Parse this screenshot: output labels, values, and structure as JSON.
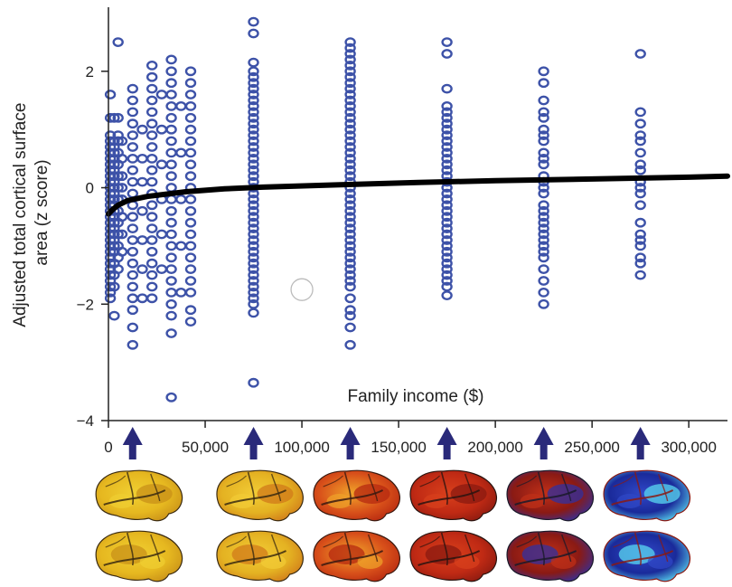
{
  "chart_data": {
    "type": "scatter",
    "xlabel": "Family income ($)",
    "ylabel": "Adjusted total cortical surface area (z score)",
    "ylabel_lines": [
      "Adjusted total cortical surface",
      "area (z score)"
    ],
    "xlim": [
      0,
      320000
    ],
    "ylim": [
      -4,
      3.1
    ],
    "x_ticks": [
      0,
      50000,
      100000,
      150000,
      200000,
      250000,
      300000
    ],
    "x_tick_labels": [
      "0",
      "50,000",
      "100,000",
      "150,000",
      "200,000",
      "250,000",
      "300,000"
    ],
    "y_ticks": [
      -4,
      -2,
      0,
      2
    ],
    "y_tick_labels": [
      "−4",
      "−2",
      "0",
      "2"
    ],
    "grid": false,
    "point_color": "#3d52a8",
    "trend_color": "#000000",
    "columns": [
      {
        "x": 1000,
        "y": [
          1.6,
          1.2,
          0.9,
          0.8,
          0.7,
          0.6,
          0.5,
          0.4,
          0.3,
          0.2,
          0.1,
          0.0,
          -0.1,
          -0.2,
          -0.3,
          -0.4,
          -0.5,
          -0.6,
          -0.7,
          -0.8,
          -0.9,
          -1.0,
          -1.1,
          -1.2,
          -1.3,
          -1.4,
          -1.5,
          -1.6,
          -1.7,
          -1.8,
          -1.9
        ]
      },
      {
        "x": 3000,
        "y": [
          1.2,
          0.8,
          0.7,
          0.6,
          0.5,
          0.4,
          0.3,
          0.2,
          0.1,
          0.0,
          -0.1,
          -0.2,
          -0.3,
          -0.4,
          -0.5,
          -0.6,
          -0.7,
          -0.8,
          -0.9,
          -1.0,
          -1.1,
          -1.3,
          -1.5,
          -1.7,
          -2.2
        ]
      },
      {
        "x": 5000,
        "y": [
          2.5,
          1.2,
          0.9,
          0.8,
          0.6,
          0.4,
          0.2,
          0.0,
          -0.2,
          -0.4,
          -0.6,
          -0.8,
          -1.0,
          -1.2,
          -1.4
        ]
      },
      {
        "x": 7000,
        "y": [
          0.8,
          0.5,
          0.2,
          0.0,
          -0.2,
          -0.5,
          -0.8,
          -1.1
        ]
      },
      {
        "x": 12500,
        "y": [
          1.7,
          1.5,
          1.3,
          1.1,
          0.9,
          0.7,
          0.5,
          0.3,
          0.1,
          -0.1,
          -0.3,
          -0.5,
          -0.7,
          -0.9,
          -1.1,
          -1.3,
          -1.5,
          -1.7,
          -1.9,
          -2.1,
          -2.4,
          -2.7
        ]
      },
      {
        "x": 17500,
        "y": [
          1.0,
          0.5,
          0.1,
          -0.4,
          -0.9,
          -1.4,
          -1.9
        ]
      },
      {
        "x": 22500,
        "y": [
          2.1,
          1.9,
          1.7,
          1.5,
          1.3,
          1.1,
          0.9,
          0.7,
          0.5,
          0.3,
          0.1,
          -0.1,
          -0.3,
          -0.5,
          -0.7,
          -0.9,
          -1.1,
          -1.3,
          -1.5,
          -1.7,
          -1.9
        ]
      },
      {
        "x": 27500,
        "y": [
          1.6,
          1.0,
          0.4,
          -0.2,
          -0.8,
          -1.4
        ]
      },
      {
        "x": 32500,
        "y": [
          2.2,
          2.0,
          1.8,
          1.6,
          1.4,
          1.2,
          1.0,
          0.8,
          0.6,
          0.4,
          0.2,
          0.0,
          -0.2,
          -0.4,
          -0.6,
          -0.8,
          -1.0,
          -1.2,
          -1.4,
          -1.6,
          -1.8,
          -2.0,
          -2.2,
          -2.5,
          -3.6
        ]
      },
      {
        "x": 37500,
        "y": [
          1.4,
          0.6,
          -0.2,
          -1.0,
          -1.8
        ]
      },
      {
        "x": 42500,
        "y": [
          2.0,
          1.8,
          1.6,
          1.4,
          1.2,
          1.0,
          0.8,
          0.6,
          0.4,
          0.2,
          0.0,
          -0.2,
          -0.4,
          -0.6,
          -0.8,
          -1.0,
          -1.2,
          -1.4,
          -1.6,
          -1.8,
          -2.1,
          -2.3
        ]
      },
      {
        "x": 75000,
        "y": [
          2.85,
          2.65,
          2.15,
          2.0,
          1.9,
          1.8,
          1.7,
          1.6,
          1.5,
          1.4,
          1.3,
          1.2,
          1.1,
          1.0,
          0.9,
          0.8,
          0.7,
          0.6,
          0.5,
          0.4,
          0.3,
          0.2,
          0.1,
          0.0,
          -0.1,
          -0.2,
          -0.3,
          -0.4,
          -0.5,
          -0.6,
          -0.7,
          -0.8,
          -0.9,
          -1.0,
          -1.1,
          -1.2,
          -1.3,
          -1.4,
          -1.5,
          -1.6,
          -1.7,
          -1.8,
          -1.9,
          -2.0,
          -2.15,
          -3.35
        ]
      },
      {
        "x": 125000,
        "y": [
          2.5,
          2.4,
          2.3,
          2.2,
          2.1,
          2.0,
          1.9,
          1.8,
          1.7,
          1.6,
          1.5,
          1.4,
          1.3,
          1.2,
          1.1,
          1.0,
          0.9,
          0.8,
          0.7,
          0.6,
          0.5,
          0.4,
          0.3,
          0.2,
          0.1,
          0.0,
          -0.1,
          -0.2,
          -0.3,
          -0.4,
          -0.5,
          -0.6,
          -0.7,
          -0.8,
          -0.9,
          -1.0,
          -1.1,
          -1.2,
          -1.3,
          -1.4,
          -1.5,
          -1.6,
          -1.7,
          -1.9,
          -2.1,
          -2.2,
          -2.4,
          -2.7
        ]
      },
      {
        "x": 175000,
        "y": [
          2.5,
          2.3,
          1.7,
          1.4,
          1.3,
          1.2,
          1.1,
          1.0,
          0.9,
          0.8,
          0.7,
          0.6,
          0.5,
          0.4,
          0.3,
          0.2,
          0.1,
          0.0,
          -0.1,
          -0.2,
          -0.3,
          -0.4,
          -0.5,
          -0.6,
          -0.7,
          -0.8,
          -0.9,
          -1.0,
          -1.1,
          -1.2,
          -1.3,
          -1.4,
          -1.5,
          -1.6,
          -1.7,
          -1.85
        ]
      },
      {
        "x": 225000,
        "y": [
          2.0,
          1.8,
          1.5,
          1.3,
          1.2,
          1.0,
          0.9,
          0.8,
          0.6,
          0.5,
          0.4,
          0.2,
          0.1,
          0.0,
          -0.1,
          -0.3,
          -0.4,
          -0.5,
          -0.6,
          -0.7,
          -0.8,
          -0.9,
          -1.0,
          -1.1,
          -1.2,
          -1.4,
          -1.6,
          -1.8,
          -2.0
        ]
      },
      {
        "x": 275000,
        "y": [
          2.3,
          1.3,
          1.1,
          0.9,
          0.8,
          0.6,
          0.4,
          0.3,
          0.1,
          0.0,
          -0.1,
          -0.3,
          -0.6,
          -0.8,
          -0.9,
          -1.0,
          -1.2,
          -1.3,
          -1.5
        ]
      }
    ],
    "trend_curve": [
      {
        "x": 0,
        "y": -0.45
      },
      {
        "x": 2000,
        "y": -0.38
      },
      {
        "x": 5000,
        "y": -0.3
      },
      {
        "x": 10000,
        "y": -0.22
      },
      {
        "x": 20000,
        "y": -0.15
      },
      {
        "x": 40000,
        "y": -0.07
      },
      {
        "x": 60000,
        "y": -0.02
      },
      {
        "x": 80000,
        "y": 0.01
      },
      {
        "x": 120000,
        "y": 0.05
      },
      {
        "x": 160000,
        "y": 0.09
      },
      {
        "x": 200000,
        "y": 0.12
      },
      {
        "x": 250000,
        "y": 0.15
      },
      {
        "x": 300000,
        "y": 0.18
      },
      {
        "x": 320000,
        "y": 0.2
      }
    ],
    "outlier_marker": {
      "x": 100000,
      "y": -1.75
    },
    "arrows": [
      {
        "x": 12500
      },
      {
        "x": 75000
      },
      {
        "x": 125000
      },
      {
        "x": 175000
      },
      {
        "x": 225000
      },
      {
        "x": 275000
      }
    ],
    "brain_maps": [
      {
        "x": 12500,
        "palette": [
          "#e6b820",
          "#f0cf32",
          "#c89018",
          "#3a2a10"
        ]
      },
      {
        "x": 75000,
        "palette": [
          "#e4b222",
          "#f2cc36",
          "#d07a1a",
          "#3a2a10"
        ]
      },
      {
        "x": 125000,
        "palette": [
          "#d8501a",
          "#f0a42a",
          "#b62810",
          "#3a1a10"
        ]
      },
      {
        "x": 175000,
        "palette": [
          "#c02a14",
          "#d8401c",
          "#8a1a10",
          "#2a1410"
        ]
      },
      {
        "x": 225000,
        "palette": [
          "#8a1a14",
          "#c03018",
          "#3030a0",
          "#1a1a2a"
        ]
      },
      {
        "x": 275000,
        "palette": [
          "#1a2a9a",
          "#3048c8",
          "#5ad8f0",
          "#8a1a14"
        ]
      }
    ]
  }
}
